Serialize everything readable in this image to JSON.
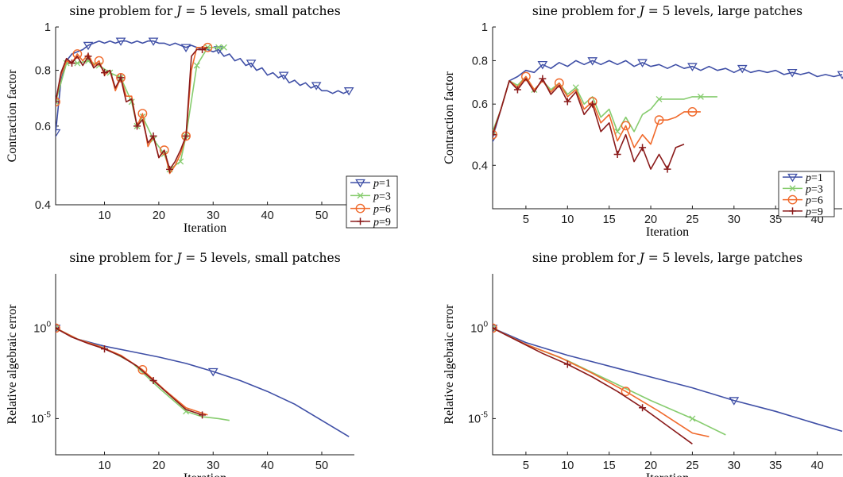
{
  "chart_data": [
    {
      "id": "cf-small",
      "type": "line",
      "title": "sine problem for J = 5 levels, small patches",
      "title_parts": [
        "sine problem for ",
        "J",
        " = 5 levels, small patches"
      ],
      "xlabel": "Iteration",
      "ylabel": "Contraction factor",
      "xlim": [
        1,
        56
      ],
      "ylim": [
        0.4,
        1
      ],
      "yscale": "log",
      "xticks": [
        10,
        20,
        30,
        40,
        50
      ],
      "yticks": [
        0.4,
        0.6,
        0.8,
        1
      ],
      "ytick_labels": [
        "0.4",
        "0.6",
        "0.8",
        "1"
      ],
      "legend": "right-middle",
      "series": [
        {
          "name": "p=1",
          "legend_parts": [
            "p",
            "=1"
          ],
          "color": "#3f4fa6",
          "marker": "triangle-down",
          "marker_every": 6,
          "marker_start": 0,
          "x": [
            1,
            2,
            3,
            4,
            5,
            6,
            7,
            8,
            9,
            10,
            11,
            12,
            13,
            14,
            15,
            16,
            17,
            18,
            19,
            20,
            21,
            22,
            23,
            24,
            25,
            26,
            27,
            28,
            29,
            30,
            31,
            32,
            33,
            34,
            35,
            36,
            37,
            38,
            39,
            40,
            41,
            42,
            43,
            44,
            45,
            46,
            47,
            48,
            49,
            50,
            51,
            52,
            53,
            54,
            55
          ],
          "y": [
            0.58,
            0.76,
            0.84,
            0.87,
            0.88,
            0.89,
            0.91,
            0.92,
            0.93,
            0.92,
            0.93,
            0.92,
            0.93,
            0.93,
            0.92,
            0.93,
            0.92,
            0.93,
            0.93,
            0.92,
            0.92,
            0.91,
            0.92,
            0.91,
            0.9,
            0.91,
            0.9,
            0.89,
            0.89,
            0.88,
            0.89,
            0.86,
            0.87,
            0.84,
            0.85,
            0.82,
            0.83,
            0.8,
            0.81,
            0.78,
            0.79,
            0.77,
            0.78,
            0.75,
            0.76,
            0.74,
            0.75,
            0.73,
            0.74,
            0.72,
            0.72,
            0.71,
            0.72,
            0.71,
            0.72
          ]
        },
        {
          "name": "p=3",
          "legend_parts": [
            "p",
            "=3"
          ],
          "color": "#86cc6e",
          "marker": "x",
          "marker_every": 1,
          "marker_start": 0,
          "x": [
            1,
            3,
            5,
            7,
            9,
            11,
            13,
            15,
            16,
            17,
            19,
            21,
            22,
            24,
            25,
            27,
            29,
            31,
            32
          ],
          "y": [
            0.68,
            0.83,
            0.83,
            0.84,
            0.82,
            0.79,
            0.77,
            0.68,
            0.6,
            0.63,
            0.56,
            0.52,
            0.48,
            0.5,
            0.57,
            0.82,
            0.9,
            0.9,
            0.9
          ]
        },
        {
          "name": "p=6",
          "legend_parts": [
            "p",
            "=6"
          ],
          "color": "#f06a2c",
          "marker": "circle",
          "marker_every": 4,
          "marker_start": 0,
          "x": [
            1,
            2,
            3,
            4,
            5,
            6,
            7,
            8,
            9,
            10,
            11,
            12,
            13,
            14,
            15,
            16,
            17,
            18,
            19,
            20,
            21,
            22,
            23,
            24,
            25,
            26,
            27,
            28,
            29
          ],
          "y": [
            0.68,
            0.78,
            0.84,
            0.83,
            0.87,
            0.84,
            0.87,
            0.82,
            0.84,
            0.78,
            0.8,
            0.72,
            0.77,
            0.7,
            0.7,
            0.6,
            0.64,
            0.54,
            0.57,
            0.51,
            0.53,
            0.47,
            0.49,
            0.52,
            0.57,
            0.8,
            0.9,
            0.9,
            0.9
          ]
        },
        {
          "name": "p=9",
          "legend_parts": [
            "p",
            "=9"
          ],
          "color": "#8a1a1a",
          "marker": "plus",
          "marker_every": 3,
          "marker_start": 0,
          "x": [
            1,
            2,
            3,
            4,
            5,
            6,
            7,
            8,
            9,
            10,
            11,
            12,
            13,
            14,
            15,
            16,
            17,
            18,
            19,
            20,
            21,
            22,
            23,
            24,
            25,
            26,
            27,
            28,
            29
          ],
          "y": [
            0.68,
            0.79,
            0.85,
            0.83,
            0.86,
            0.82,
            0.86,
            0.81,
            0.83,
            0.79,
            0.8,
            0.73,
            0.77,
            0.68,
            0.69,
            0.6,
            0.62,
            0.55,
            0.57,
            0.51,
            0.53,
            0.48,
            0.5,
            0.53,
            0.57,
            0.86,
            0.89,
            0.89,
            0.9
          ]
        }
      ]
    },
    {
      "id": "cf-large",
      "type": "line",
      "title": "sine problem for J = 5 levels, large patches",
      "title_parts": [
        "sine problem for ",
        "J",
        " = 5 levels, large patches"
      ],
      "xlabel": "Iteration",
      "ylabel": "Contraction factor",
      "xlim": [
        1,
        43
      ],
      "ylim": [
        0.3,
        1
      ],
      "yscale": "log",
      "xticks": [
        5,
        10,
        15,
        20,
        25,
        30,
        35,
        40
      ],
      "yticks": [
        0.4,
        0.6,
        0.8,
        1
      ],
      "ytick_labels": [
        "0.4",
        "0.6",
        "0.8",
        "1"
      ],
      "legend": "right-middle",
      "series": [
        {
          "name": "p=1",
          "legend_parts": [
            "p",
            "=1"
          ],
          "color": "#3f4fa6",
          "marker": "triangle-down",
          "marker_every": 6,
          "marker_start": 0,
          "x": [
            1,
            2,
            3,
            4,
            5,
            6,
            7,
            8,
            9,
            10,
            11,
            12,
            13,
            14,
            15,
            16,
            17,
            18,
            19,
            20,
            21,
            22,
            23,
            24,
            25,
            26,
            27,
            28,
            29,
            30,
            31,
            32,
            33,
            34,
            35,
            36,
            37,
            38,
            39,
            40,
            41,
            42,
            43
          ],
          "y": [
            0.48,
            0.58,
            0.7,
            0.72,
            0.75,
            0.74,
            0.78,
            0.76,
            0.79,
            0.77,
            0.8,
            0.78,
            0.8,
            0.78,
            0.8,
            0.78,
            0.8,
            0.77,
            0.79,
            0.77,
            0.78,
            0.76,
            0.78,
            0.76,
            0.77,
            0.75,
            0.77,
            0.75,
            0.76,
            0.74,
            0.76,
            0.74,
            0.75,
            0.74,
            0.75,
            0.73,
            0.74,
            0.73,
            0.74,
            0.72,
            0.73,
            0.72,
            0.73
          ]
        },
        {
          "name": "p=3",
          "legend_parts": [
            "p",
            "=3"
          ],
          "color": "#86cc6e",
          "marker": "x",
          "marker_every": 5,
          "marker_start": 0,
          "x": [
            1,
            2,
            3,
            4,
            5,
            6,
            7,
            8,
            9,
            10,
            11,
            12,
            13,
            14,
            15,
            16,
            17,
            18,
            19,
            20,
            21,
            22,
            23,
            24,
            25,
            26,
            27,
            28
          ],
          "y": [
            0.5,
            0.58,
            0.7,
            0.68,
            0.72,
            0.66,
            0.7,
            0.66,
            0.69,
            0.64,
            0.67,
            0.6,
            0.63,
            0.55,
            0.58,
            0.5,
            0.55,
            0.5,
            0.56,
            0.58,
            0.62,
            0.62,
            0.62,
            0.62,
            0.63,
            0.63,
            0.63,
            0.63
          ]
        },
        {
          "name": "p=6",
          "legend_parts": [
            "p",
            "=6"
          ],
          "color": "#f06a2c",
          "marker": "circle",
          "marker_every": 4,
          "marker_start": 0,
          "x": [
            1,
            2,
            3,
            4,
            5,
            6,
            7,
            8,
            9,
            10,
            11,
            12,
            13,
            14,
            15,
            16,
            17,
            18,
            19,
            20,
            21,
            22,
            23,
            24,
            25,
            26
          ],
          "y": [
            0.49,
            0.58,
            0.7,
            0.67,
            0.72,
            0.66,
            0.7,
            0.65,
            0.69,
            0.63,
            0.66,
            0.58,
            0.61,
            0.53,
            0.56,
            0.47,
            0.52,
            0.45,
            0.49,
            0.46,
            0.54,
            0.54,
            0.55,
            0.57,
            0.57,
            0.57
          ]
        },
        {
          "name": "p=9",
          "legend_parts": [
            "p",
            "=9"
          ],
          "color": "#8a1a1a",
          "marker": "plus",
          "marker_every": 3,
          "marker_start": 0,
          "x": [
            1,
            2,
            3,
            4,
            5,
            6,
            7,
            8,
            9,
            10,
            11,
            12,
            13,
            14,
            15,
            16,
            17,
            18,
            19,
            20,
            21,
            22,
            23,
            24
          ],
          "y": [
            0.49,
            0.58,
            0.7,
            0.66,
            0.71,
            0.65,
            0.71,
            0.64,
            0.68,
            0.61,
            0.65,
            0.56,
            0.6,
            0.5,
            0.53,
            0.43,
            0.49,
            0.41,
            0.45,
            0.39,
            0.43,
            0.39,
            0.45,
            0.46
          ]
        }
      ]
    },
    {
      "id": "err-small",
      "type": "line",
      "title": "sine problem for J = 5 levels, small patches",
      "title_parts": [
        "sine problem for ",
        "J",
        " = 5 levels, small patches"
      ],
      "xlabel": "Iteration",
      "ylabel": "Relative algebraic error",
      "xlim": [
        1,
        56
      ],
      "ylim": [
        -7,
        3
      ],
      "yscale": "log",
      "value_format": "log10",
      "xticks": [
        10,
        20,
        30,
        40,
        50
      ],
      "yticks": [
        0,
        -5
      ],
      "ytick_labels": [
        "10^0",
        "10^-5"
      ],
      "series": [
        {
          "name": "p=1",
          "color": "#3f4fa6",
          "marker": "triangle-down",
          "marker_every": 6,
          "marker_start": 0,
          "x": [
            1,
            5,
            10,
            15,
            20,
            25,
            30,
            35,
            40,
            45,
            50,
            55
          ],
          "y": [
            0.0,
            -0.6,
            -1.0,
            -1.3,
            -1.6,
            -1.95,
            -2.4,
            -2.9,
            -3.5,
            -4.2,
            -5.1,
            -6.0
          ]
        },
        {
          "name": "p=3",
          "color": "#86cc6e",
          "marker": "x",
          "marker_every": 5,
          "marker_start": 0,
          "x": [
            1,
            5,
            10,
            15,
            20,
            25,
            28,
            31,
            33
          ],
          "y": [
            0.0,
            -0.6,
            -1.1,
            -1.9,
            -3.3,
            -4.6,
            -4.9,
            -5.0,
            -5.1
          ]
        },
        {
          "name": "p=6",
          "color": "#f06a2c",
          "marker": "circle",
          "marker_every": 4,
          "marker_start": 0,
          "x": [
            1,
            5,
            9,
            13,
            17,
            21,
            25,
            29
          ],
          "y": [
            0.0,
            -0.6,
            -1.0,
            -1.5,
            -2.3,
            -3.4,
            -4.4,
            -4.8
          ]
        },
        {
          "name": "p=9",
          "color": "#8a1a1a",
          "marker": "plus",
          "marker_every": 3,
          "marker_start": 0,
          "x": [
            1,
            4,
            7,
            10,
            13,
            16,
            19,
            22,
            25,
            28
          ],
          "y": [
            0.0,
            -0.5,
            -0.85,
            -1.15,
            -1.55,
            -2.1,
            -2.9,
            -3.7,
            -4.5,
            -4.8
          ]
        }
      ]
    },
    {
      "id": "err-large",
      "type": "line",
      "title": "sine problem for J = 5 levels, large patches",
      "title_parts": [
        "sine problem for ",
        "J",
        " = 5 levels, large patches"
      ],
      "xlabel": "Iteration",
      "ylabel": "Relative algebraic error",
      "xlim": [
        1,
        43
      ],
      "ylim": [
        -7,
        3
      ],
      "yscale": "log",
      "value_format": "log10",
      "xticks": [
        5,
        10,
        15,
        20,
        25,
        30,
        35,
        40
      ],
      "yticks": [
        0,
        -5
      ],
      "ytick_labels": [
        "10^0",
        "10^-5"
      ],
      "series": [
        {
          "name": "p=1",
          "color": "#3f4fa6",
          "marker": "triangle-down",
          "marker_every": 6,
          "marker_start": 0,
          "x": [
            1,
            5,
            10,
            15,
            20,
            25,
            30,
            35,
            40,
            43
          ],
          "y": [
            0.0,
            -0.8,
            -1.5,
            -2.1,
            -2.7,
            -3.3,
            -4.0,
            -4.6,
            -5.3,
            -5.7
          ]
        },
        {
          "name": "p=3",
          "color": "#86cc6e",
          "marker": "x",
          "marker_every": 5,
          "marker_start": 0,
          "x": [
            1,
            5,
            10,
            15,
            20,
            25,
            29
          ],
          "y": [
            0.0,
            -0.9,
            -1.8,
            -2.9,
            -4.0,
            -5.0,
            -5.9
          ]
        },
        {
          "name": "p=6",
          "color": "#f06a2c",
          "marker": "circle",
          "marker_every": 4,
          "marker_start": 0,
          "x": [
            1,
            5,
            9,
            13,
            17,
            21,
            25,
            27
          ],
          "y": [
            0.0,
            -0.9,
            -1.6,
            -2.5,
            -3.5,
            -4.6,
            -5.8,
            -6.0
          ]
        },
        {
          "name": "p=9",
          "color": "#8a1a1a",
          "marker": "plus",
          "marker_every": 3,
          "marker_start": 0,
          "x": [
            1,
            4,
            7,
            10,
            13,
            16,
            19,
            22,
            25
          ],
          "y": [
            0.0,
            -0.7,
            -1.4,
            -2.0,
            -2.7,
            -3.5,
            -4.4,
            -5.4,
            -6.4
          ]
        }
      ]
    }
  ]
}
